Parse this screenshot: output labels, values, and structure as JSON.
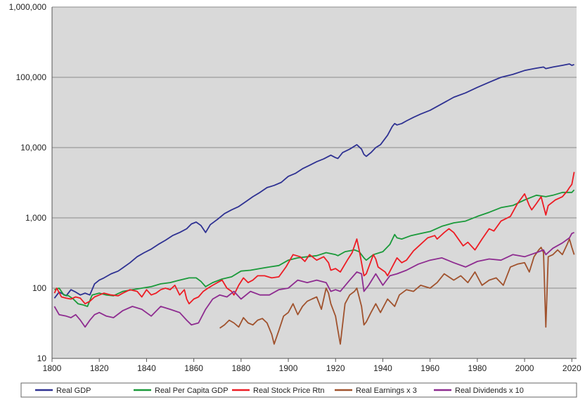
{
  "chart_data": {
    "type": "line",
    "title": "",
    "xlabel": "",
    "ylabel": "",
    "y_scale": "log",
    "xlim": [
      1800,
      2022
    ],
    "ylim": [
      10,
      1000000
    ],
    "x_ticks": [
      1800,
      1820,
      1840,
      1860,
      1880,
      1900,
      1920,
      1940,
      1960,
      1980,
      2000,
      2020
    ],
    "x_tick_labels": [
      "1800",
      "1820",
      "1840",
      "1860",
      "1880",
      "1900",
      "1920",
      "1940",
      "1960",
      "1980",
      "2000",
      "2020"
    ],
    "y_ticks": [
      10,
      100,
      1000,
      10000,
      100000,
      1000000
    ],
    "y_tick_labels": [
      "10",
      "100",
      "1,000",
      "10,000",
      "100,000",
      "1,000,000"
    ],
    "grid": "horizontal",
    "plot_background": "#d9d9d9",
    "legend_position": "bottom",
    "series": [
      {
        "name": "Real GDP",
        "color": "#2e3192",
        "x": [
          1801,
          1803,
          1806,
          1808,
          1810,
          1812,
          1814,
          1816,
          1818,
          1820,
          1822,
          1825,
          1828,
          1830,
          1833,
          1836,
          1839,
          1842,
          1845,
          1848,
          1851,
          1854,
          1857,
          1859,
          1861,
          1863,
          1865,
          1867,
          1870,
          1873,
          1876,
          1879,
          1882,
          1885,
          1888,
          1891,
          1894,
          1897,
          1900,
          1903,
          1906,
          1909,
          1912,
          1915,
          1918,
          1920,
          1921,
          1923,
          1926,
          1929,
          1931,
          1932,
          1933,
          1935,
          1937,
          1939,
          1942,
          1944,
          1945,
          1946,
          1948,
          1950,
          1953,
          1956,
          1960,
          1965,
          1970,
          1975,
          1980,
          1985,
          1990,
          1995,
          2000,
          2005,
          2008,
          2009,
          2012,
          2016,
          2019,
          2020,
          2021
        ],
        "y": [
          72,
          88,
          78,
          95,
          88,
          80,
          85,
          80,
          115,
          130,
          140,
          160,
          175,
          195,
          230,
          280,
          320,
          360,
          420,
          480,
          560,
          620,
          700,
          820,
          870,
          780,
          620,
          800,
          950,
          1150,
          1300,
          1450,
          1700,
          2000,
          2300,
          2700,
          2900,
          3200,
          3900,
          4300,
          5000,
          5600,
          6300,
          6900,
          7800,
          7200,
          7000,
          8500,
          9500,
          11000,
          9500,
          8000,
          7500,
          8500,
          10000,
          11000,
          15000,
          20000,
          22000,
          21000,
          22000,
          24000,
          27000,
          30000,
          34000,
          42000,
          52000,
          60000,
          72000,
          85000,
          100000,
          110000,
          125000,
          135000,
          140000,
          133000,
          140000,
          148000,
          155000,
          148000,
          152000
        ]
      },
      {
        "name": "Real Per Capita GDP",
        "color": "#1a9a3a",
        "x": [
          1801,
          1803,
          1805,
          1807,
          1809,
          1811,
          1813,
          1815,
          1817,
          1820,
          1823,
          1826,
          1830,
          1834,
          1838,
          1842,
          1846,
          1850,
          1854,
          1858,
          1861,
          1863,
          1865,
          1868,
          1872,
          1876,
          1880,
          1884,
          1888,
          1892,
          1896,
          1900,
          1904,
          1908,
          1912,
          1916,
          1920,
          1921,
          1924,
          1928,
          1930,
          1932,
          1933,
          1936,
          1940,
          1943,
          1945,
          1946,
          1948,
          1952,
          1956,
          1960,
          1965,
          1970,
          1975,
          1980,
          1985,
          1990,
          1995,
          2000,
          2005,
          2009,
          2012,
          2016,
          2020,
          2021
        ],
        "y": [
          95,
          100,
          80,
          78,
          70,
          60,
          58,
          55,
          80,
          85,
          80,
          78,
          90,
          95,
          100,
          105,
          115,
          120,
          130,
          140,
          140,
          125,
          105,
          120,
          135,
          145,
          175,
          180,
          190,
          200,
          210,
          250,
          270,
          280,
          290,
          320,
          300,
          290,
          330,
          350,
          330,
          270,
          250,
          300,
          330,
          420,
          580,
          520,
          500,
          560,
          600,
          640,
          760,
          850,
          900,
          1050,
          1200,
          1400,
          1500,
          1800,
          2100,
          2000,
          2100,
          2300,
          2300,
          2500
        ]
      },
      {
        "name": "Real Stock Price Rtn",
        "color": "#ed1c24",
        "x": [
          1801,
          1802,
          1804,
          1806,
          1808,
          1810,
          1812,
          1814,
          1816,
          1818,
          1820,
          1822,
          1825,
          1828,
          1830,
          1833,
          1836,
          1838,
          1840,
          1842,
          1844,
          1846,
          1848,
          1850,
          1852,
          1854,
          1856,
          1857,
          1858,
          1860,
          1862,
          1864,
          1866,
          1868,
          1870,
          1872,
          1874,
          1876,
          1877,
          1879,
          1881,
          1883,
          1885,
          1887,
          1890,
          1893,
          1896,
          1899,
          1902,
          1905,
          1907,
          1909,
          1912,
          1915,
          1917,
          1918,
          1920,
          1922,
          1925,
          1927,
          1929,
          1930,
          1932,
          1933,
          1936,
          1937,
          1938,
          1941,
          1942,
          1946,
          1948,
          1950,
          1953,
          1956,
          1959,
          1962,
          1963,
          1966,
          1968,
          1970,
          1974,
          1976,
          1979,
          1982,
          1985,
          1987,
          1990,
          1994,
          1997,
          2000,
          2002,
          2003,
          2005,
          2007,
          2009,
          2010,
          2013,
          2016,
          2018,
          2019,
          2020,
          2021
        ],
        "y": [
          85,
          100,
          75,
          72,
          70,
          75,
          72,
          60,
          65,
          75,
          80,
          85,
          80,
          78,
          85,
          95,
          90,
          75,
          95,
          80,
          85,
          95,
          100,
          95,
          110,
          80,
          95,
          70,
          60,
          70,
          75,
          90,
          100,
          110,
          120,
          130,
          100,
          90,
          80,
          110,
          140,
          120,
          130,
          150,
          150,
          140,
          145,
          200,
          300,
          280,
          240,
          300,
          250,
          280,
          230,
          180,
          190,
          170,
          250,
          320,
          500,
          350,
          150,
          160,
          300,
          260,
          200,
          170,
          150,
          270,
          230,
          250,
          340,
          420,
          520,
          560,
          500,
          620,
          700,
          620,
          400,
          450,
          350,
          500,
          700,
          650,
          900,
          1050,
          1600,
          2200,
          1500,
          1300,
          1600,
          2000,
          1100,
          1500,
          1800,
          2000,
          2400,
          2700,
          3000,
          4500
        ]
      },
      {
        "name": "Real Earnings x 3",
        "color": "#a0522d",
        "x": [
          1871,
          1873,
          1875,
          1877,
          1879,
          1881,
          1883,
          1885,
          1887,
          1889,
          1891,
          1893,
          1894,
          1896,
          1898,
          1900,
          1902,
          1904,
          1906,
          1908,
          1910,
          1912,
          1914,
          1916,
          1917,
          1918,
          1920,
          1921,
          1922,
          1924,
          1926,
          1928,
          1929,
          1931,
          1932,
          1933,
          1935,
          1937,
          1939,
          1942,
          1945,
          1947,
          1950,
          1953,
          1956,
          1960,
          1963,
          1966,
          1970,
          1973,
          1976,
          1979,
          1982,
          1985,
          1988,
          1991,
          1994,
          1997,
          2000,
          2002,
          2004,
          2006,
          2007,
          2008,
          2009,
          2010,
          2012,
          2014,
          2016,
          2018,
          2019,
          2020,
          2021
        ],
        "y": [
          27,
          30,
          35,
          32,
          28,
          38,
          32,
          30,
          35,
          37,
          32,
          22,
          16,
          25,
          40,
          45,
          60,
          42,
          55,
          65,
          70,
          75,
          50,
          100,
          85,
          60,
          40,
          25,
          16,
          60,
          80,
          90,
          100,
          55,
          30,
          33,
          45,
          60,
          45,
          70,
          55,
          80,
          95,
          90,
          110,
          100,
          120,
          160,
          130,
          150,
          120,
          170,
          110,
          130,
          140,
          110,
          200,
          220,
          230,
          170,
          280,
          350,
          380,
          320,
          28,
          280,
          300,
          350,
          300,
          420,
          500,
          380,
          300
        ]
      },
      {
        "name": "Real Dividends x 10",
        "color": "#8e2c90",
        "x": [
          1801,
          1803,
          1806,
          1808,
          1810,
          1812,
          1814,
          1816,
          1818,
          1820,
          1823,
          1826,
          1830,
          1834,
          1838,
          1842,
          1846,
          1850,
          1854,
          1857,
          1859,
          1862,
          1865,
          1868,
          1871,
          1874,
          1877,
          1880,
          1884,
          1888,
          1892,
          1896,
          1900,
          1904,
          1908,
          1912,
          1916,
          1918,
          1920,
          1922,
          1926,
          1929,
          1931,
          1932,
          1934,
          1937,
          1940,
          1943,
          1946,
          1950,
          1955,
          1960,
          1965,
          1970,
          1975,
          1980,
          1985,
          1990,
          1995,
          2000,
          2005,
          2008,
          2009,
          2012,
          2016,
          2019,
          2020,
          2021
        ],
        "y": [
          55,
          42,
          40,
          38,
          42,
          35,
          28,
          35,
          42,
          45,
          40,
          38,
          48,
          55,
          50,
          40,
          55,
          50,
          45,
          35,
          30,
          32,
          50,
          70,
          80,
          75,
          90,
          70,
          90,
          80,
          80,
          95,
          100,
          130,
          120,
          130,
          120,
          90,
          95,
          90,
          130,
          170,
          160,
          90,
          110,
          160,
          110,
          150,
          160,
          180,
          220,
          250,
          270,
          230,
          200,
          240,
          260,
          250,
          300,
          280,
          320,
          350,
          300,
          370,
          440,
          520,
          600,
          620
        ]
      }
    ]
  }
}
